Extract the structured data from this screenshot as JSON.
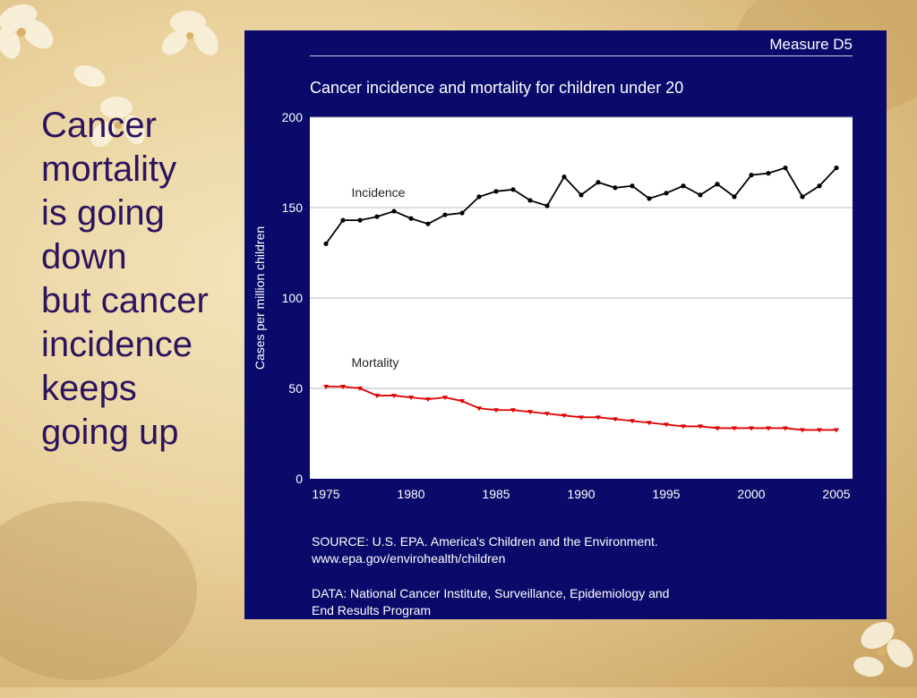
{
  "slide": {
    "lines": [
      "Cancer",
      "mortality",
      "is going",
      "down",
      "but cancer",
      "incidence",
      "keeps",
      "going up"
    ]
  },
  "panel": {
    "measure": "Measure D5",
    "source_line1": "SOURCE: U.S. EPA. America's Children and the Environment.",
    "source_line2": "www.epa.gov/envirohealth/children",
    "data_line1": "DATA: National Cancer Institute, Surveillance, Epidemiology and",
    "data_line2": "End Results Program"
  },
  "colors": {
    "panel_bg": "#0a0a6b",
    "incidence": "#000000",
    "mortality": "#e00000",
    "slide_text": "#2c145e"
  },
  "chart_data": {
    "type": "line",
    "title": "Cancer incidence and mortality for children under 20",
    "xlabel": "",
    "ylabel": "Cases per million children",
    "xlim": [
      1975,
      2005
    ],
    "ylim": [
      0,
      200
    ],
    "xticks": [
      1975,
      1980,
      1985,
      1990,
      1995,
      2000,
      2005
    ],
    "yticks": [
      0,
      50,
      100,
      150,
      200
    ],
    "grid": true,
    "legend": "inline labels",
    "x": [
      1975,
      1976,
      1977,
      1978,
      1979,
      1980,
      1981,
      1982,
      1983,
      1984,
      1985,
      1986,
      1987,
      1988,
      1989,
      1990,
      1991,
      1992,
      1993,
      1994,
      1995,
      1996,
      1997,
      1998,
      1999,
      2000,
      2001,
      2002,
      2003,
      2004,
      2005
    ],
    "series": [
      {
        "name": "Incidence",
        "values": [
          130,
          143,
          143,
          145,
          148,
          144,
          141,
          146,
          147,
          156,
          159,
          160,
          154,
          151,
          167,
          157,
          164,
          161,
          162,
          155,
          158,
          162,
          157,
          163,
          156,
          168,
          169,
          172,
          156,
          162,
          172
        ]
      },
      {
        "name": "Mortality",
        "values": [
          51,
          51,
          50,
          46,
          46,
          45,
          44,
          45,
          43,
          39,
          38,
          38,
          37,
          36,
          35,
          34,
          34,
          33,
          32,
          31,
          30,
          29,
          29,
          28,
          28,
          28,
          28,
          28,
          27,
          27,
          27
        ]
      }
    ]
  }
}
